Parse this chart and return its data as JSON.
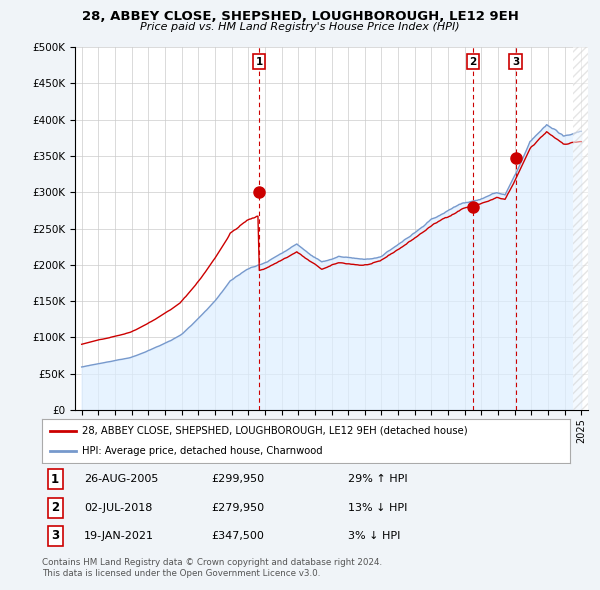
{
  "title1": "28, ABBEY CLOSE, SHEPSHED, LOUGHBOROUGH, LE12 9EH",
  "title2": "Price paid vs. HM Land Registry's House Price Index (HPI)",
  "line1_label": "28, ABBEY CLOSE, SHEPSHED, LOUGHBOROUGH, LE12 9EH (detached house)",
  "line2_label": "HPI: Average price, detached house, Charnwood",
  "line1_color": "#cc0000",
  "line2_color": "#7799cc",
  "fill2_color": "#ddeeff",
  "transactions": [
    {
      "num": 1,
      "date_x": 2005.65,
      "price": 299950,
      "label": "1"
    },
    {
      "num": 2,
      "date_x": 2018.5,
      "price": 279950,
      "label": "2"
    },
    {
      "num": 3,
      "date_x": 2021.05,
      "price": 347500,
      "label": "3"
    }
  ],
  "transaction_table": [
    {
      "num": "1",
      "date": "26-AUG-2005",
      "price": "£299,950",
      "pct": "29%",
      "dir": "↑",
      "ref": "HPI"
    },
    {
      "num": "2",
      "date": "02-JUL-2018",
      "price": "£279,950",
      "pct": "13%",
      "dir": "↓",
      "ref": "HPI"
    },
    {
      "num": "3",
      "date": "19-JAN-2021",
      "price": "£347,500",
      "pct": "3%",
      "dir": "↓",
      "ref": "HPI"
    }
  ],
  "footer": [
    "Contains HM Land Registry data © Crown copyright and database right 2024.",
    "This data is licensed under the Open Government Licence v3.0."
  ],
  "ylim": [
    0,
    500000
  ],
  "yticks": [
    0,
    50000,
    100000,
    150000,
    200000,
    250000,
    300000,
    350000,
    400000,
    450000,
    500000
  ],
  "xlim_start": 1994.6,
  "xlim_end": 2025.4,
  "background_color": "#f0f4f8",
  "plot_bg": "#ffffff",
  "hatch_start": 2024.5
}
